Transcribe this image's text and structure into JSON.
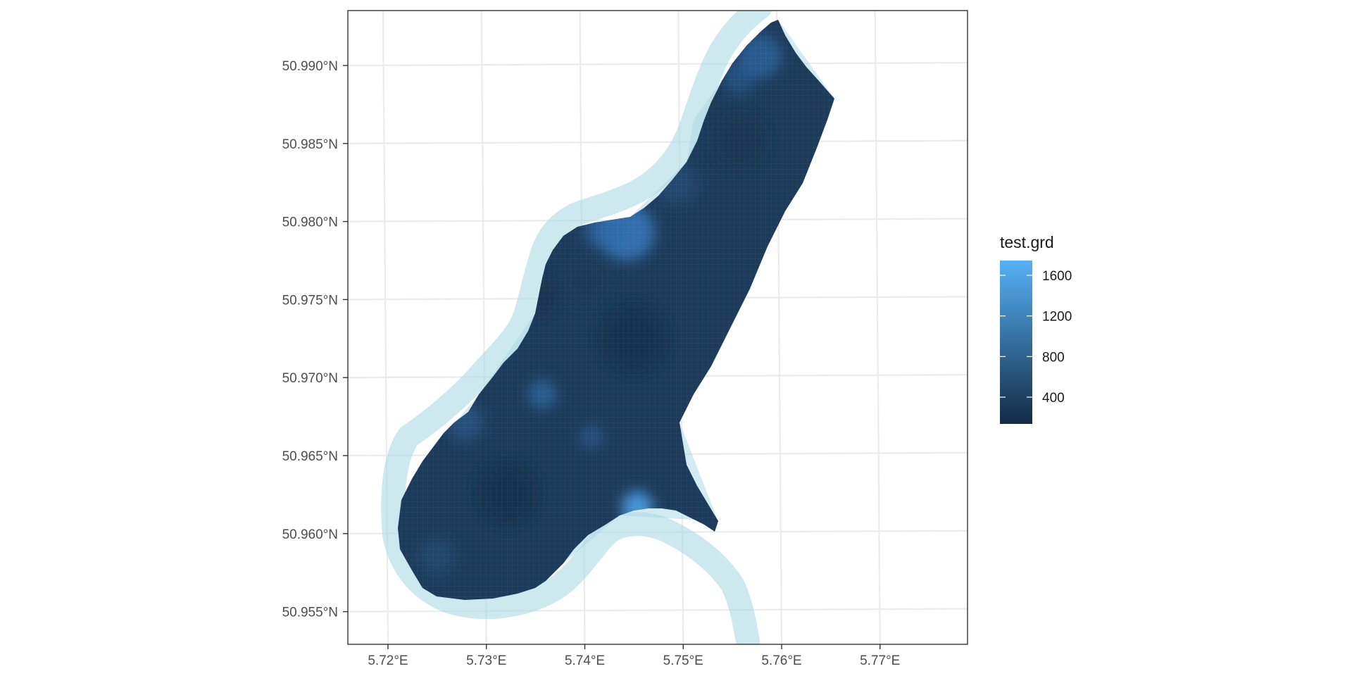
{
  "map": {
    "type": "raster",
    "x_axis": {
      "ticks": [
        "5.72°E",
        "5.73°E",
        "5.74°E",
        "5.75°E",
        "5.76°E",
        "5.77°E"
      ],
      "values": [
        5.72,
        5.73,
        5.74,
        5.75,
        5.76,
        5.77
      ]
    },
    "y_axis": {
      "ticks": [
        "50.990°N",
        "50.985°N",
        "50.980°N",
        "50.975°N",
        "50.970°N",
        "50.965°N",
        "50.960°N",
        "50.955°N"
      ],
      "values": [
        50.99,
        50.985,
        50.98,
        50.975,
        50.97,
        50.965,
        50.96,
        50.955
      ]
    },
    "legend": {
      "title": "test.grd",
      "labels": [
        "1600",
        "1200",
        "800",
        "400"
      ],
      "values": [
        1600,
        1200,
        800,
        400
      ],
      "low_color": "#132b43",
      "high_color": "#56b1f7"
    },
    "colors": {
      "buffer": "#add8e6",
      "panel_border": "#333333",
      "grid": "#ebebeb",
      "background": "#ffffff"
    }
  }
}
